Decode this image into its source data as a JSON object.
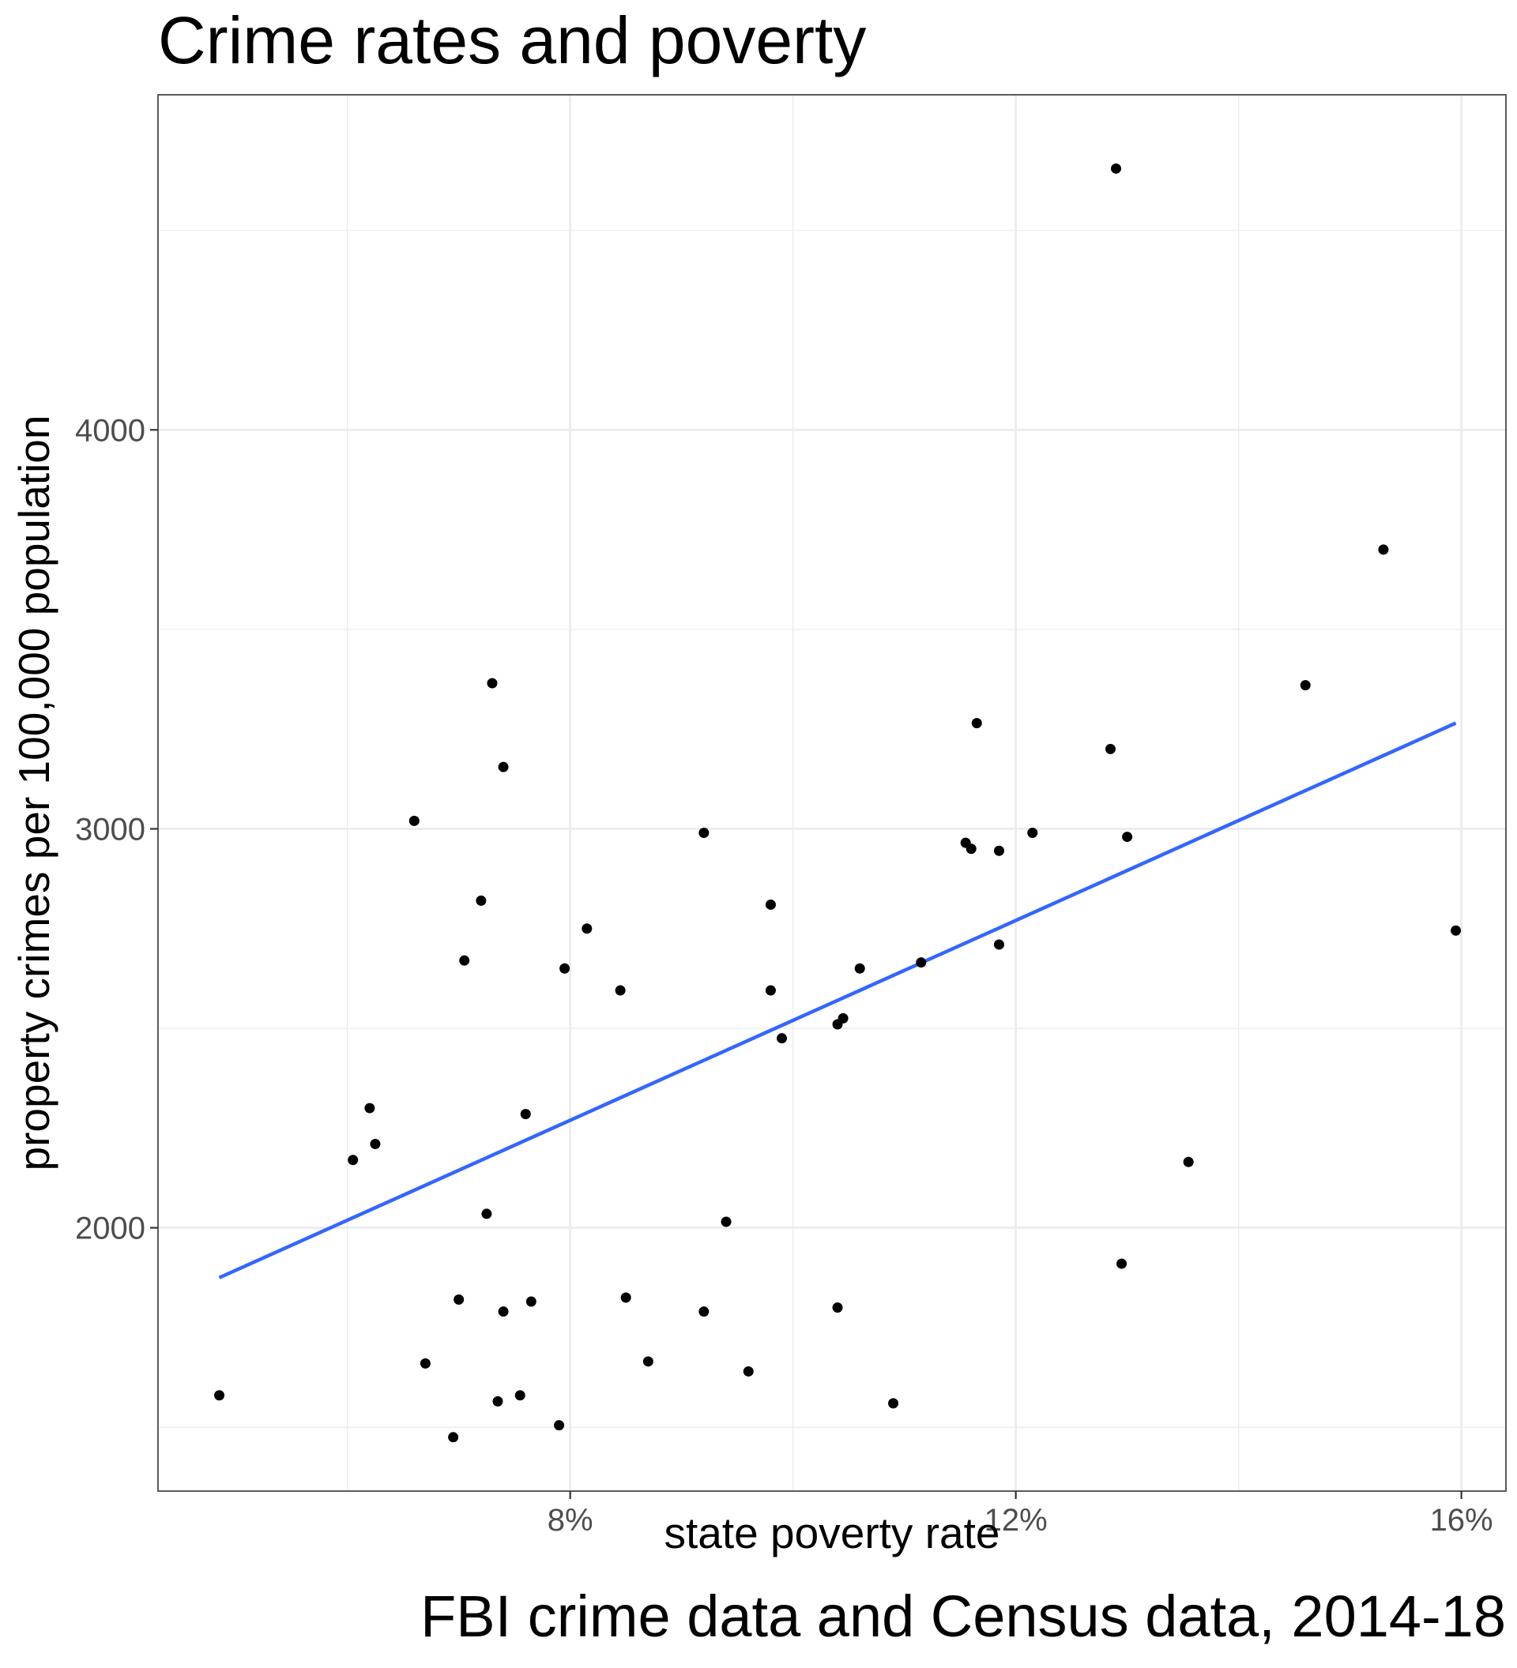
{
  "chart_data": {
    "type": "scatter",
    "title": "Crime rates and poverty",
    "xlabel": "state poverty rate",
    "ylabel": "property crimes per 100,000 population",
    "caption": "FBI crime data and Census data, 2014-18",
    "xlim": [
      4.3,
      16.4
    ],
    "ylim": [
      1340,
      4840
    ],
    "x_ticks": [
      8,
      12,
      16
    ],
    "x_tick_labels": [
      "8%",
      "12%",
      "16%"
    ],
    "x_minor_ticks": [
      6,
      10,
      14
    ],
    "y_ticks": [
      2000,
      3000,
      4000
    ],
    "y_tick_labels": [
      "2000",
      "3000",
      "4000"
    ],
    "y_minor_ticks": [
      1500,
      2500,
      3500,
      4500
    ],
    "grid": true,
    "colors": {
      "points": "#000000",
      "trend_line": "#3366FF"
    },
    "series": [
      {
        "points": [
          [
            4.85,
            1580
          ],
          [
            6.05,
            2170
          ],
          [
            6.2,
            2300
          ],
          [
            6.25,
            2210
          ],
          [
            6.6,
            3020
          ],
          [
            6.7,
            1660
          ],
          [
            6.95,
            1475
          ],
          [
            7.0,
            1820
          ],
          [
            7.05,
            2670
          ],
          [
            7.2,
            2820
          ],
          [
            7.25,
            2035
          ],
          [
            7.3,
            3365
          ],
          [
            7.35,
            1565
          ],
          [
            7.4,
            3155
          ],
          [
            7.4,
            1790
          ],
          [
            7.55,
            1580
          ],
          [
            7.6,
            2285
          ],
          [
            7.65,
            1815
          ],
          [
            7.9,
            1505
          ],
          [
            7.95,
            2650
          ],
          [
            8.15,
            2750
          ],
          [
            8.45,
            2595
          ],
          [
            8.5,
            1825
          ],
          [
            8.7,
            1665
          ],
          [
            9.2,
            2990
          ],
          [
            9.2,
            1790
          ],
          [
            9.4,
            2015
          ],
          [
            9.6,
            1640
          ],
          [
            9.8,
            2810
          ],
          [
            9.8,
            2595
          ],
          [
            9.9,
            2475
          ],
          [
            10.4,
            1800
          ],
          [
            10.4,
            2510
          ],
          [
            10.45,
            2525
          ],
          [
            10.6,
            2650
          ],
          [
            10.9,
            1560
          ],
          [
            11.15,
            2665
          ],
          [
            11.55,
            2965
          ],
          [
            11.6,
            2950
          ],
          [
            11.65,
            3265
          ],
          [
            11.85,
            2945
          ],
          [
            11.85,
            2710
          ],
          [
            12.15,
            2990
          ],
          [
            12.85,
            3200
          ],
          [
            12.9,
            4655
          ],
          [
            12.95,
            1910
          ],
          [
            13.0,
            2980
          ],
          [
            13.55,
            2165
          ],
          [
            14.6,
            3360
          ],
          [
            15.3,
            3700
          ],
          [
            15.95,
            2745
          ]
        ]
      }
    ],
    "trend_line": {
      "method": "linear",
      "x": [
        4.85,
        15.95
      ],
      "y": [
        1875,
        3265
      ]
    }
  }
}
